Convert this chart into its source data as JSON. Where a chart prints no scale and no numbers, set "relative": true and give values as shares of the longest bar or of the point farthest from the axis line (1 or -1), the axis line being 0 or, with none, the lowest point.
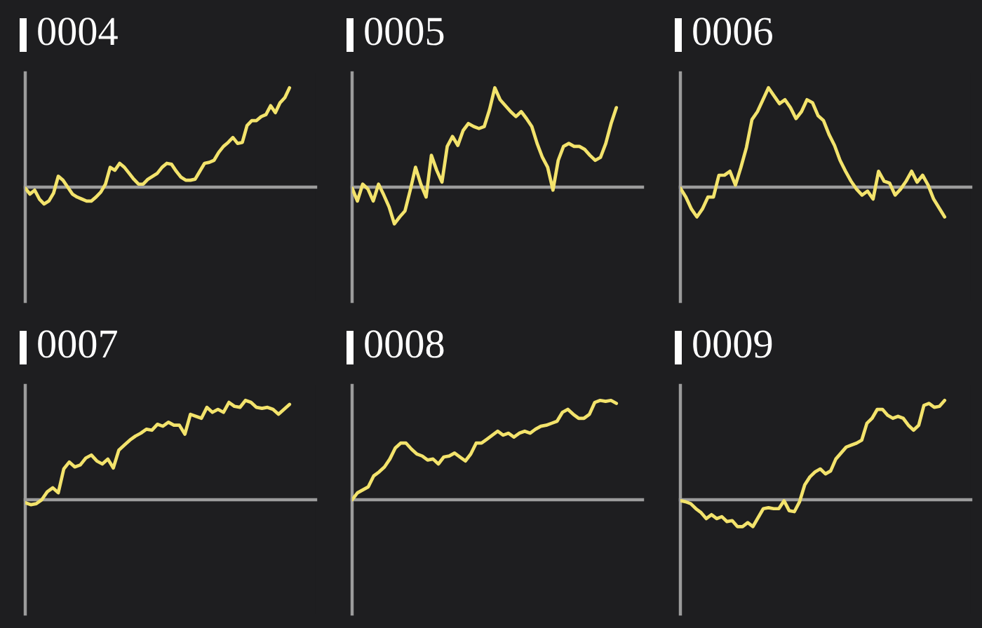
{
  "chart_data": [
    {
      "type": "line",
      "title": "0004",
      "relative": true,
      "categories": [
        null,
        null,
        null,
        null,
        null,
        null,
        null,
        null,
        null,
        null,
        null,
        null,
        null,
        null,
        null,
        null,
        null,
        null,
        null,
        null,
        null,
        null,
        null,
        null,
        null,
        null,
        null,
        null,
        null,
        null,
        null,
        null,
        null,
        null,
        null,
        null,
        null,
        null,
        null,
        null,
        null,
        null,
        null,
        null,
        null,
        null,
        null,
        null,
        null,
        null,
        null,
        null,
        null,
        null,
        null,
        null,
        null
      ],
      "series": [
        {
          "color": "#f3e36c",
          "values": [
            -0.01,
            -0.07,
            -0.03,
            -0.12,
            -0.17,
            -0.14,
            -0.06,
            0.11,
            0.07,
            0,
            -0.07,
            -0.1,
            -0.12,
            -0.14,
            -0.14,
            -0.1,
            -0.05,
            0.03,
            0.2,
            0.17,
            0.24,
            0.2,
            0.14,
            0.08,
            0.03,
            0.03,
            0.08,
            0.11,
            0.14,
            0.2,
            0.24,
            0.23,
            0.16,
            0.1,
            0.07,
            0.07,
            0.08,
            0.16,
            0.24,
            0.25,
            0.27,
            0.35,
            0.41,
            0.45,
            0.5,
            0.44,
            0.45,
            0.62,
            0.67,
            0.67,
            0.71,
            0.73,
            0.82,
            0.75,
            0.85,
            0.9,
            1
          ]
        }
      ]
    },
    {
      "type": "line",
      "title": "0005",
      "relative": true,
      "categories": [
        null,
        null,
        null,
        null,
        null,
        null,
        null,
        null,
        null,
        null,
        null,
        null,
        null,
        null,
        null,
        null,
        null,
        null,
        null,
        null,
        null,
        null,
        null,
        null,
        null,
        null,
        null,
        null,
        null,
        null,
        null,
        null,
        null,
        null,
        null,
        null,
        null,
        null,
        null,
        null,
        null,
        null,
        null,
        null,
        null,
        null,
        null,
        null,
        null,
        null,
        null
      ],
      "series": [
        {
          "color": "#f3e36c",
          "values": [
            -0.01,
            -0.14,
            0.03,
            -0.02,
            -0.14,
            0.03,
            -0.08,
            -0.2,
            -0.37,
            -0.3,
            -0.24,
            -0.03,
            0.2,
            0.03,
            -0.1,
            0.32,
            0.17,
            0.05,
            0.41,
            0.51,
            0.42,
            0.57,
            0.64,
            0.61,
            0.59,
            0.61,
            0.78,
            1,
            0.88,
            0.82,
            0.76,
            0.71,
            0.76,
            0.69,
            0.61,
            0.44,
            0.3,
            0.2,
            -0.03,
            0.27,
            0.41,
            0.44,
            0.41,
            0.41,
            0.38,
            0.32,
            0.27,
            0.3,
            0.44,
            0.64,
            0.8
          ]
        }
      ]
    },
    {
      "type": "line",
      "title": "0006",
      "relative": true,
      "categories": [
        null,
        null,
        null,
        null,
        null,
        null,
        null,
        null,
        null,
        null,
        null,
        null,
        null,
        null,
        null,
        null,
        null,
        null,
        null,
        null,
        null,
        null,
        null,
        null,
        null,
        null,
        null,
        null,
        null,
        null,
        null,
        null,
        null,
        null,
        null,
        null,
        null,
        null,
        null,
        null,
        null,
        null,
        null,
        null,
        null,
        null,
        null,
        null,
        null
      ],
      "series": [
        {
          "color": "#f3e36c",
          "values": [
            -0.01,
            -0.1,
            -0.22,
            -0.3,
            -0.22,
            -0.1,
            -0.1,
            0.12,
            0.12,
            0.16,
            0.02,
            0.2,
            0.4,
            0.68,
            0.76,
            0.88,
            1,
            0.92,
            0.84,
            0.88,
            0.8,
            0.69,
            0.76,
            0.88,
            0.85,
            0.72,
            0.67,
            0.53,
            0.42,
            0.27,
            0.16,
            0.06,
            -0.02,
            -0.08,
            -0.04,
            -0.12,
            0.16,
            0.06,
            0.04,
            -0.08,
            -0.02,
            0.06,
            0.16,
            0.05,
            0.12,
            0.02,
            -0.12,
            -0.21,
            -0.3
          ]
        }
      ]
    },
    {
      "type": "line",
      "title": "0007",
      "relative": true,
      "categories": [
        null,
        null,
        null,
        null,
        null,
        null,
        null,
        null,
        null,
        null,
        null,
        null,
        null,
        null,
        null,
        null,
        null,
        null,
        null,
        null,
        null,
        null,
        null,
        null,
        null,
        null,
        null,
        null,
        null,
        null,
        null,
        null,
        null,
        null,
        null,
        null,
        null,
        null,
        null,
        null,
        null,
        null,
        null,
        null,
        null,
        null,
        null,
        null,
        null
      ],
      "series": [
        {
          "color": "#f3e36c",
          "values": [
            -0.03,
            -0.05,
            -0.04,
            0,
            0.08,
            0.12,
            0.07,
            0.31,
            0.38,
            0.33,
            0.35,
            0.42,
            0.45,
            0.39,
            0.36,
            0.41,
            0.32,
            0.5,
            0.55,
            0.6,
            0.64,
            0.67,
            0.71,
            0.7,
            0.76,
            0.74,
            0.78,
            0.75,
            0.75,
            0.66,
            0.86,
            0.84,
            0.82,
            0.93,
            0.88,
            0.91,
            0.88,
            0.98,
            0.94,
            0.93,
            1,
            0.98,
            0.93,
            0.92,
            0.93,
            0.91,
            0.86,
            0.91,
            0.96
          ]
        }
      ]
    },
    {
      "type": "line",
      "title": "0008",
      "relative": true,
      "categories": [
        null,
        null,
        null,
        null,
        null,
        null,
        null,
        null,
        null,
        null,
        null,
        null,
        null,
        null,
        null,
        null,
        null,
        null,
        null,
        null,
        null,
        null,
        null,
        null,
        null,
        null,
        null,
        null,
        null,
        null,
        null,
        null,
        null,
        null,
        null,
        null,
        null,
        null,
        null,
        null,
        null,
        null,
        null,
        null,
        null,
        null,
        null,
        null,
        null,
        null
      ],
      "series": [
        {
          "color": "#f3e36c",
          "values": [
            0,
            0.07,
            0.1,
            0.13,
            0.24,
            0.28,
            0.33,
            0.41,
            0.52,
            0.57,
            0.57,
            0.51,
            0.46,
            0.44,
            0.4,
            0.41,
            0.36,
            0.43,
            0.44,
            0.47,
            0.43,
            0.39,
            0.46,
            0.57,
            0.57,
            0.61,
            0.65,
            0.69,
            0.65,
            0.67,
            0.63,
            0.67,
            0.69,
            0.67,
            0.71,
            0.74,
            0.75,
            0.77,
            0.79,
            0.88,
            0.91,
            0.86,
            0.82,
            0.82,
            0.86,
            0.98,
            1,
            0.99,
            1,
            0.97
          ]
        }
      ]
    },
    {
      "type": "line",
      "title": "0009",
      "relative": true,
      "categories": [
        null,
        null,
        null,
        null,
        null,
        null,
        null,
        null,
        null,
        null,
        null,
        null,
        null,
        null,
        null,
        null,
        null,
        null,
        null,
        null,
        null,
        null,
        null,
        null,
        null,
        null,
        null,
        null,
        null,
        null,
        null,
        null,
        null,
        null,
        null,
        null,
        null,
        null,
        null,
        null,
        null,
        null,
        null,
        null,
        null,
        null,
        null,
        null,
        null,
        null,
        null,
        null
      ],
      "series": [
        {
          "color": "#f3e36c",
          "values": [
            -0.01,
            -0.02,
            -0.04,
            -0.09,
            -0.13,
            -0.19,
            -0.15,
            -0.19,
            -0.17,
            -0.22,
            -0.21,
            -0.27,
            -0.27,
            -0.23,
            -0.27,
            -0.18,
            -0.09,
            -0.08,
            -0.09,
            -0.09,
            -0.01,
            -0.11,
            -0.12,
            -0.02,
            0.15,
            0.23,
            0.28,
            0.31,
            0.26,
            0.29,
            0.41,
            0.47,
            0.53,
            0.55,
            0.57,
            0.6,
            0.77,
            0.82,
            0.91,
            0.91,
            0.85,
            0.82,
            0.84,
            0.82,
            0.75,
            0.7,
            0.75,
            0.95,
            0.97,
            0.93,
            0.94,
            1
          ]
        }
      ]
    }
  ]
}
